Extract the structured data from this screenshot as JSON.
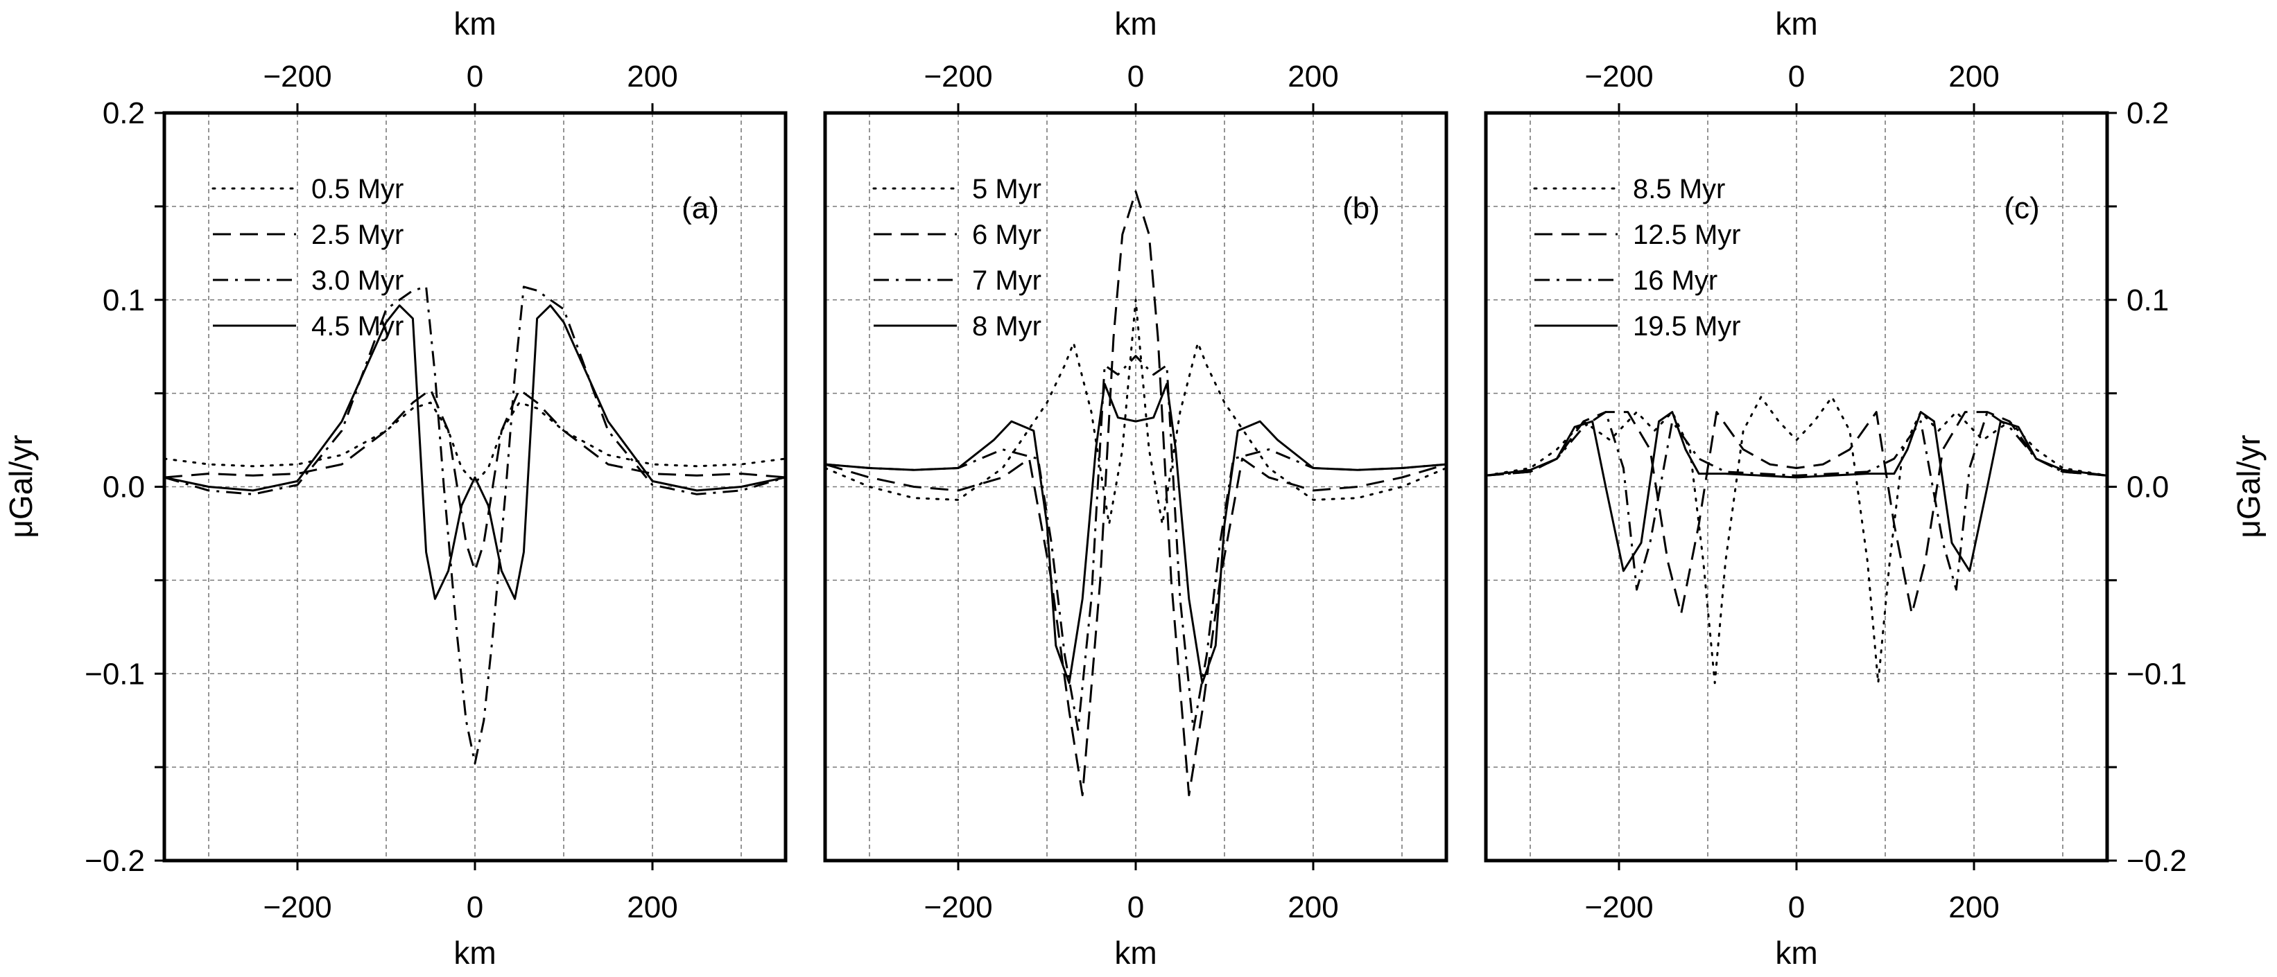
{
  "chart_data": {
    "type": "line",
    "ylabel": "μGal/yr",
    "xlabel_bottom": "km",
    "xlabel_top": "km",
    "xlim": [
      -350,
      350
    ],
    "ylim": [
      -0.2,
      0.2
    ],
    "x_ticks": [
      -200,
      0,
      200
    ],
    "x_tick_labels": [
      "−200",
      "0",
      "200"
    ],
    "y_ticks": [
      -0.2,
      -0.1,
      0.0,
      0.1,
      0.2
    ],
    "y_tick_labels": [
      "−0.2",
      "−0.1",
      "0.0",
      "0.1",
      "0.2"
    ],
    "grid": true,
    "panels": [
      {
        "tag": "(a)",
        "series": [
          {
            "name": "0.5 Myr",
            "style": "dotted",
            "x": [
              -350,
              -300,
              -250,
              -200,
              -150,
              -100,
              -70,
              -50,
              -30,
              -15,
              0,
              15,
              30,
              50,
              70,
              100,
              150,
              200,
              250,
              300,
              350
            ],
            "y": [
              0.015,
              0.012,
              0.011,
              0.012,
              0.017,
              0.03,
              0.042,
              0.045,
              0.03,
              0.01,
              0.002,
              0.01,
              0.03,
              0.045,
              0.042,
              0.03,
              0.017,
              0.012,
              0.011,
              0.012,
              0.015
            ]
          },
          {
            "name": "2.5 Myr",
            "style": "dashed",
            "x": [
              -350,
              -300,
              -250,
              -200,
              -150,
              -100,
              -70,
              -50,
              -30,
              -20,
              -10,
              0,
              10,
              20,
              30,
              50,
              70,
              100,
              150,
              200,
              250,
              300,
              350
            ],
            "y": [
              0.005,
              0.007,
              0.006,
              0.007,
              0.012,
              0.03,
              0.045,
              0.052,
              0.03,
              0.0,
              -0.03,
              -0.045,
              -0.03,
              0.0,
              0.03,
              0.052,
              0.045,
              0.03,
              0.012,
              0.007,
              0.006,
              0.007,
              0.005
            ]
          },
          {
            "name": "3.0 Myr",
            "style": "dashdot",
            "x": [
              -350,
              -300,
              -250,
              -200,
              -150,
              -100,
              -70,
              -55,
              -45,
              -35,
              -20,
              -10,
              0,
              10,
              20,
              35,
              45,
              55,
              70,
              100,
              150,
              200,
              250,
              300,
              350
            ],
            "y": [
              0.005,
              -0.002,
              -0.004,
              0.001,
              0.03,
              0.095,
              0.105,
              0.107,
              0.06,
              0.0,
              -0.08,
              -0.125,
              -0.148,
              -0.125,
              -0.08,
              0.0,
              0.06,
              0.107,
              0.105,
              0.095,
              0.03,
              0.001,
              -0.004,
              -0.002,
              0.005
            ]
          },
          {
            "name": "4.5 Myr",
            "style": "solid",
            "x": [
              -350,
              -300,
              -250,
              -200,
              -150,
              -100,
              -85,
              -70,
              -55,
              -45,
              -30,
              -15,
              0,
              15,
              30,
              45,
              55,
              70,
              85,
              100,
              150,
              200,
              250,
              300,
              350
            ],
            "y": [
              0.005,
              0.0,
              -0.002,
              0.003,
              0.035,
              0.088,
              0.097,
              0.09,
              -0.035,
              -0.06,
              -0.045,
              -0.01,
              0.005,
              -0.01,
              -0.045,
              -0.06,
              -0.035,
              0.09,
              0.097,
              0.088,
              0.035,
              0.003,
              -0.002,
              0.0,
              0.005
            ]
          }
        ]
      },
      {
        "tag": "(b)",
        "series": [
          {
            "name": "5 Myr",
            "style": "dotted",
            "x": [
              -350,
              -300,
              -250,
              -200,
              -150,
              -100,
              -80,
              -70,
              -50,
              -30,
              -15,
              0,
              15,
              30,
              50,
              70,
              80,
              100,
              150,
              200,
              250,
              300,
              350
            ],
            "y": [
              0.01,
              0.0,
              -0.006,
              -0.007,
              0.01,
              0.045,
              0.065,
              0.077,
              0.04,
              -0.02,
              0.02,
              0.1,
              0.02,
              -0.02,
              0.04,
              0.077,
              0.065,
              0.045,
              0.01,
              -0.007,
              -0.006,
              0.0,
              0.01
            ]
          },
          {
            "name": "6 Myr",
            "style": "dashed",
            "x": [
              -350,
              -300,
              -250,
              -200,
              -150,
              -120,
              -95,
              -75,
              -60,
              -40,
              -25,
              -15,
              0,
              15,
              25,
              40,
              60,
              75,
              95,
              120,
              150,
              200,
              250,
              300,
              350
            ],
            "y": [
              0.012,
              0.005,
              0.0,
              -0.002,
              0.005,
              0.015,
              -0.05,
              -0.12,
              -0.165,
              -0.05,
              0.08,
              0.135,
              0.158,
              0.135,
              0.08,
              -0.05,
              -0.165,
              -0.12,
              -0.05,
              0.015,
              0.005,
              -0.002,
              0.0,
              0.005,
              0.012
            ]
          },
          {
            "name": "7 Myr",
            "style": "dashdot",
            "x": [
              -350,
              -300,
              -250,
              -200,
              -150,
              -110,
              -95,
              -80,
              -65,
              -50,
              -35,
              -20,
              0,
              20,
              35,
              50,
              65,
              80,
              95,
              110,
              150,
              200,
              250,
              300,
              350
            ],
            "y": [
              0.012,
              0.01,
              0.009,
              0.01,
              0.02,
              0.015,
              -0.03,
              -0.09,
              -0.13,
              -0.06,
              0.065,
              0.06,
              0.07,
              0.06,
              0.065,
              -0.06,
              -0.13,
              -0.09,
              -0.03,
              0.015,
              0.02,
              0.01,
              0.009,
              0.01,
              0.012
            ]
          },
          {
            "name": "8 Myr",
            "style": "solid",
            "x": [
              -350,
              -300,
              -250,
              -200,
              -160,
              -140,
              -115,
              -100,
              -90,
              -75,
              -60,
              -45,
              -35,
              -20,
              0,
              20,
              35,
              45,
              60,
              75,
              90,
              100,
              115,
              140,
              160,
              200,
              250,
              300,
              350
            ],
            "y": [
              0.012,
              0.01,
              0.009,
              0.01,
              0.025,
              0.035,
              0.03,
              -0.02,
              -0.085,
              -0.105,
              -0.06,
              0.02,
              0.055,
              0.037,
              0.035,
              0.037,
              0.055,
              0.02,
              -0.06,
              -0.105,
              -0.085,
              -0.02,
              0.03,
              0.035,
              0.025,
              0.01,
              0.009,
              0.01,
              0.012
            ]
          }
        ]
      },
      {
        "tag": "(c)",
        "series": [
          {
            "name": "8.5 Myr",
            "style": "dotted",
            "x": [
              -350,
              -300,
              -270,
              -240,
              -210,
              -180,
              -160,
              -140,
              -120,
              -105,
              -92,
              -80,
              -60,
              -40,
              -20,
              0,
              20,
              40,
              60,
              80,
              92,
              105,
              120,
              140,
              160,
              180,
              210,
              240,
              270,
              300,
              350
            ],
            "y": [
              0.006,
              0.01,
              0.02,
              0.035,
              0.025,
              0.04,
              0.03,
              0.04,
              0.02,
              -0.04,
              -0.105,
              -0.04,
              0.03,
              0.048,
              0.035,
              0.025,
              0.035,
              0.048,
              0.03,
              -0.04,
              -0.105,
              -0.04,
              0.02,
              0.04,
              0.03,
              0.04,
              0.025,
              0.035,
              0.02,
              0.01,
              0.006
            ]
          },
          {
            "name": "12.5 Myr",
            "style": "dashed",
            "x": [
              -350,
              -300,
              -270,
              -240,
              -215,
              -190,
              -165,
              -145,
              -130,
              -110,
              -90,
              -60,
              -30,
              0,
              30,
              60,
              90,
              110,
              130,
              145,
              165,
              190,
              215,
              240,
              270,
              300,
              350
            ],
            "y": [
              0.006,
              0.008,
              0.015,
              0.035,
              0.04,
              0.04,
              0.02,
              -0.04,
              -0.068,
              -0.02,
              0.04,
              0.02,
              0.012,
              0.01,
              0.012,
              0.02,
              0.04,
              -0.02,
              -0.068,
              -0.04,
              0.02,
              0.04,
              0.04,
              0.035,
              0.015,
              0.008,
              0.006
            ]
          },
          {
            "name": "16 Myr",
            "style": "dashdot",
            "x": [
              -350,
              -300,
              -270,
              -240,
              -215,
              -195,
              -180,
              -165,
              -140,
              -110,
              -80,
              -40,
              0,
              40,
              80,
              110,
              140,
              165,
              180,
              195,
              215,
              240,
              270,
              300,
              350
            ],
            "y": [
              0.006,
              0.008,
              0.015,
              0.032,
              0.04,
              0.01,
              -0.055,
              -0.03,
              0.035,
              0.015,
              0.008,
              0.007,
              0.006,
              0.007,
              0.008,
              0.015,
              0.035,
              -0.03,
              -0.055,
              0.01,
              0.04,
              0.032,
              0.015,
              0.008,
              0.006
            ]
          },
          {
            "name": "19.5 Myr",
            "style": "solid",
            "x": [
              -350,
              -300,
              -270,
              -250,
              -230,
              -215,
              -195,
              -175,
              -155,
              -140,
              -125,
              -110,
              -80,
              -40,
              0,
              40,
              80,
              110,
              125,
              140,
              155,
              175,
              195,
              215,
              230,
              250,
              270,
              300,
              350
            ],
            "y": [
              0.006,
              0.009,
              0.015,
              0.032,
              0.035,
              0.0,
              -0.045,
              -0.03,
              0.035,
              0.04,
              0.02,
              0.007,
              0.007,
              0.006,
              0.005,
              0.006,
              0.007,
              0.007,
              0.02,
              0.04,
              0.035,
              -0.03,
              -0.045,
              0.0,
              0.035,
              0.032,
              0.015,
              0.009,
              0.006
            ]
          }
        ]
      }
    ]
  }
}
